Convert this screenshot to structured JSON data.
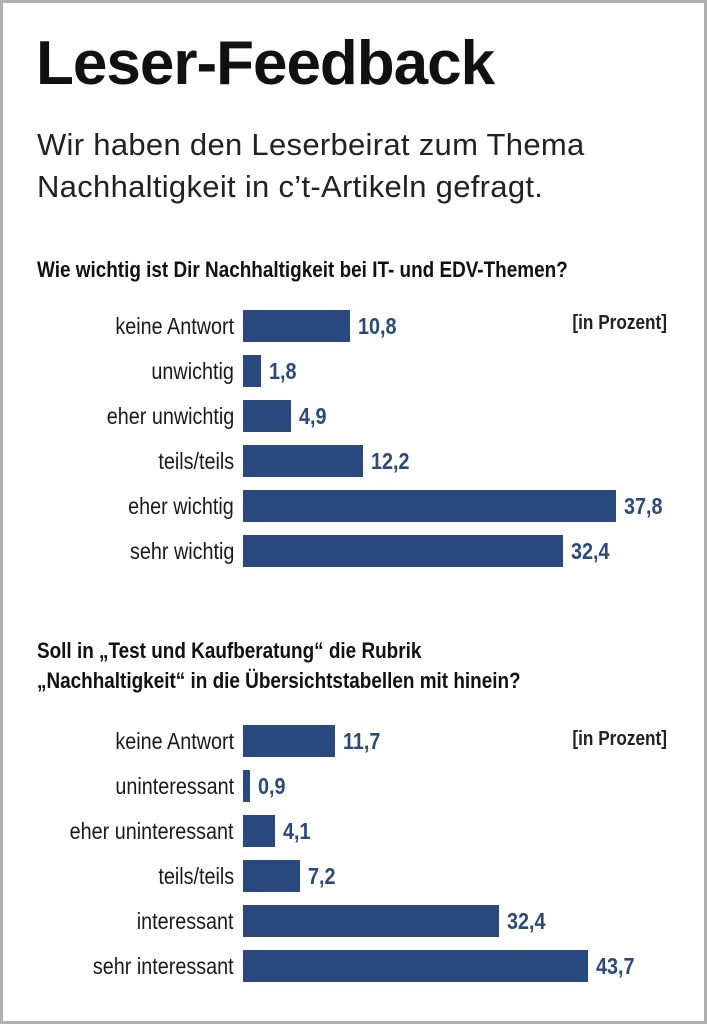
{
  "title": "Leser-Feedback",
  "subtitle_lines": [
    "Wir haben den Leserbeirat zum Thema",
    "Nachhaltigkeit in c’t-Artikeln gefragt."
  ],
  "colors": {
    "bar": "#2a4a7f",
    "frame": "#b0b0b0"
  },
  "chart_data": [
    {
      "type": "bar",
      "orientation": "horizontal",
      "title": "Wie wichtig ist Dir Nachhaltigkeit bei IT- und EDV-Themen?",
      "unit_label": "[in Prozent]",
      "categories": [
        "keine Antwort",
        "unwichtig",
        "eher unwichtig",
        "teils/teils",
        "eher wichtig",
        "sehr wichtig"
      ],
      "values": [
        10.8,
        1.8,
        4.9,
        12.2,
        37.8,
        32.4
      ],
      "value_labels": [
        "10,8",
        "1,8",
        "4,9",
        "12,2",
        "37,8",
        "32,4"
      ]
    },
    {
      "type": "bar",
      "orientation": "horizontal",
      "title_lines": [
        "Soll in „Test und Kaufberatung“ die Rubrik",
        "„Nachhaltigkeit“ in die Übersichtstabellen mit hinein?"
      ],
      "unit_label": "[in Prozent]",
      "categories": [
        "keine Antwort",
        "uninteressant",
        "eher uninteressant",
        "teils/teils",
        "interessant",
        "sehr interessant"
      ],
      "values": [
        11.7,
        0.9,
        4.1,
        7.2,
        32.4,
        43.7
      ],
      "value_labels": [
        "11,7",
        "0,9",
        "4,1",
        "7,2",
        "32,4",
        "43,7"
      ]
    }
  ]
}
